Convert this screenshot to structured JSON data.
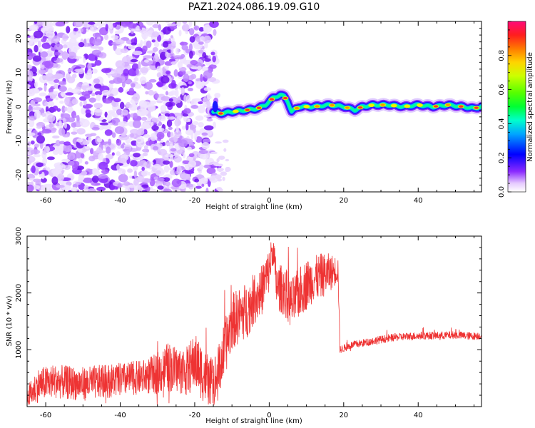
{
  "title": "PAZ1.2024.086.19.09.G10",
  "colors": {
    "snr_line": "#ee3333",
    "spectrogram_noise": "#7a1aff",
    "axis": "#000000"
  },
  "chart_data": [
    {
      "type": "heatmap",
      "name": "spectrogram",
      "xlabel": "Height of straight line (km)",
      "ylabel": "Frequency (Hz)",
      "xlim": [
        -65,
        57
      ],
      "ylim": [
        -25,
        25
      ],
      "xticks": [
        -60,
        -40,
        -20,
        0,
        20,
        40
      ],
      "yticks": [
        -20,
        -10,
        0,
        10,
        20
      ],
      "xtick_labels": [
        "-60",
        "-40",
        "-20",
        "0",
        "20",
        "40"
      ],
      "ytick_labels": [
        "-20",
        "-10",
        "0",
        "10",
        "20"
      ],
      "noise_region_x": [
        -65,
        -15
      ],
      "ridge": {
        "x": [
          -15,
          -13,
          -10,
          -6,
          -3,
          -1,
          0,
          1,
          2,
          3,
          4,
          5,
          6,
          8,
          12,
          16,
          20,
          23,
          25,
          28,
          32,
          36,
          40,
          44,
          48,
          52,
          55,
          57
        ],
        "frequency": [
          -1.5,
          -2,
          -1.5,
          -1,
          -0.5,
          0.5,
          1.5,
          2.5,
          3,
          3.5,
          3,
          1.5,
          -1.5,
          0,
          0,
          0.5,
          0,
          -1,
          0,
          0.5,
          0.5,
          0,
          0.5,
          0,
          0.5,
          0,
          -0.5,
          0
        ]
      },
      "colorbar": {
        "label": "Normalized spectral amplitude",
        "range": [
          0,
          1
        ],
        "ticks": [
          0.0,
          0.2,
          0.4,
          0.6,
          0.8
        ],
        "tick_labels": [
          "0.0",
          "0.2",
          "0.4",
          "0.6",
          "0.8"
        ],
        "colormap": "gist_ncar-like"
      }
    },
    {
      "type": "line",
      "name": "snr",
      "xlabel": "Height of straight line (km)",
      "ylabel": "SNR (10 * v/v)",
      "xlim": [
        -65,
        57
      ],
      "ylim": [
        0,
        3000
      ],
      "xticks": [
        -60,
        -40,
        -20,
        0,
        20,
        40
      ],
      "yticks": [
        1000,
        2000,
        3000
      ],
      "xtick_labels": [
        "-60",
        "-40",
        "-20",
        "0",
        "20",
        "40"
      ],
      "ytick_labels": [
        "1000",
        "2000",
        "3000"
      ],
      "series": [
        {
          "x": [
            -65,
            -62,
            -58,
            -54,
            -50,
            -46,
            -42,
            -38,
            -34,
            -31,
            -29,
            -27,
            -25,
            -22,
            -20,
            -18,
            -16,
            -14,
            -12,
            -10,
            -8,
            -6,
            -4,
            -2,
            0,
            1,
            2,
            4,
            6,
            8,
            10,
            12,
            14,
            16,
            18,
            18.5,
            19,
            22,
            26,
            30,
            34,
            38,
            42,
            46,
            50,
            54,
            57
          ],
          "y": [
            150,
            380,
            450,
            420,
            400,
            430,
            460,
            480,
            520,
            560,
            620,
            700,
            650,
            620,
            800,
            600,
            400,
            500,
            1000,
            1500,
            1600,
            1700,
            1900,
            2050,
            2400,
            2800,
            2100,
            2050,
            1800,
            2000,
            2150,
            2250,
            2300,
            2350,
            2400,
            2400,
            1000,
            1080,
            1130,
            1180,
            1220,
            1240,
            1250,
            1250,
            1260,
            1240,
            1250
          ],
          "noise": [
            200,
            300,
            300,
            300,
            300,
            300,
            300,
            300,
            300,
            350,
            400,
            450,
            400,
            450,
            500,
            500,
            450,
            500,
            500,
            500,
            500,
            500,
            450,
            450,
            400,
            300,
            400,
            450,
            450,
            450,
            450,
            400,
            400,
            350,
            250,
            250,
            70,
            70,
            70,
            70,
            70,
            70,
            70,
            70,
            70,
            70,
            70
          ]
        }
      ]
    }
  ]
}
